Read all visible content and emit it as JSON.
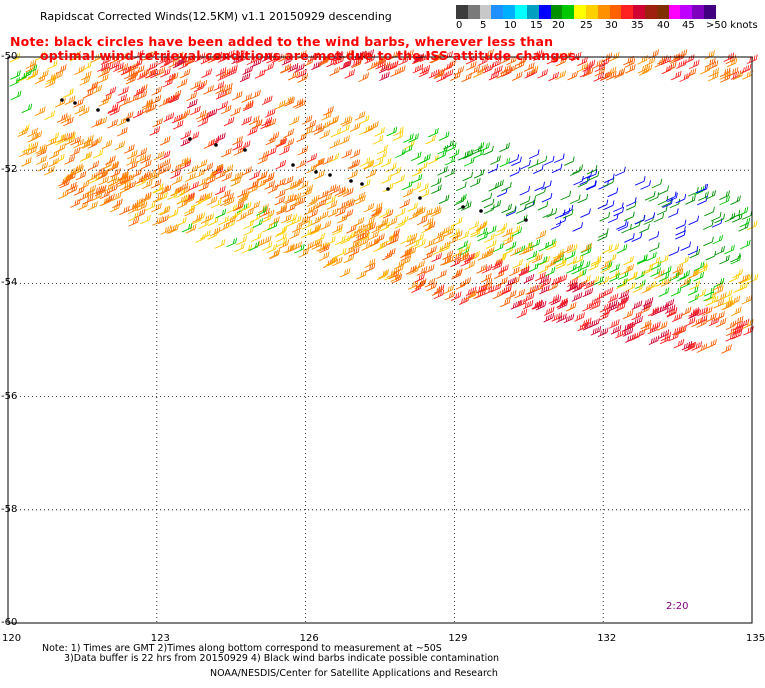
{
  "title": "Rapidscat Corrected Winds(12.5KM) v1.1 20150929 descending",
  "notes": [
    "Note: black circles have been added to the wind barbs, wherever less than",
    "optimal wind retrieval conditions are met due to the ISS attitude changes."
  ],
  "colorbar": {
    "labels": [
      "0",
      "5",
      "10",
      "15",
      "20",
      "25",
      "30",
      "35",
      "40",
      "45",
      ">50 knots"
    ],
    "colors": [
      "#3c3c3c",
      "#7a7a7a",
      "#c8c8c8",
      "#1e90ff",
      "#00b0ff",
      "#00ffff",
      "#00a0c0",
      "#0000ff",
      "#009000",
      "#00c800",
      "#ffff00",
      "#ffd000",
      "#ff9000",
      "#ff6000",
      "#ff2020",
      "#d00030",
      "#a02010",
      "#803000",
      "#ff00ff",
      "#c000ff",
      "#8000c0",
      "#400080"
    ]
  },
  "map": {
    "lon_range": [
      120,
      135
    ],
    "lat_range": [
      -60,
      -50
    ],
    "lon_ticks": [
      "120",
      "123",
      "126",
      "129",
      "132",
      "135"
    ],
    "lat_ticks": [
      "-50",
      "-52",
      "-54",
      "-56",
      "-58",
      "-60"
    ]
  },
  "pass_time": "2:20",
  "footer": {
    "line1": "Note: 1) Times are GMT 2)Times along bottom correspond to measurement at ~50S",
    "line2": "3)Data buffer is 22 hrs from 20150929 4) Black wind barbs indicate possible contamination",
    "credit": "NOAA/NESDIS/Center for Satellite Applications and Research"
  }
}
